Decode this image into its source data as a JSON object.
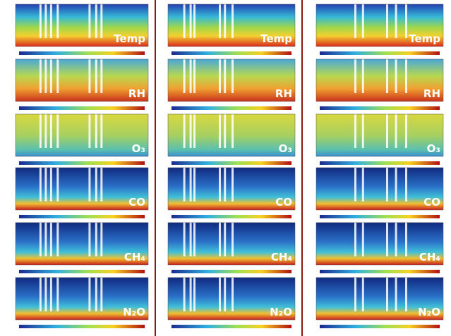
{
  "columns": [
    {
      "panels": [
        "Temp",
        "RH",
        "O₃",
        "CO",
        "CH₄",
        "N₂O"
      ]
    },
    {
      "panels": [
        "Temp",
        "RH",
        "O₃",
        "CO",
        "CH₄",
        "N₂O"
      ]
    },
    {
      "panels": [
        "Temp",
        "RH",
        "O₃",
        "CO",
        "CH₄",
        "N₂O"
      ]
    }
  ]
}
